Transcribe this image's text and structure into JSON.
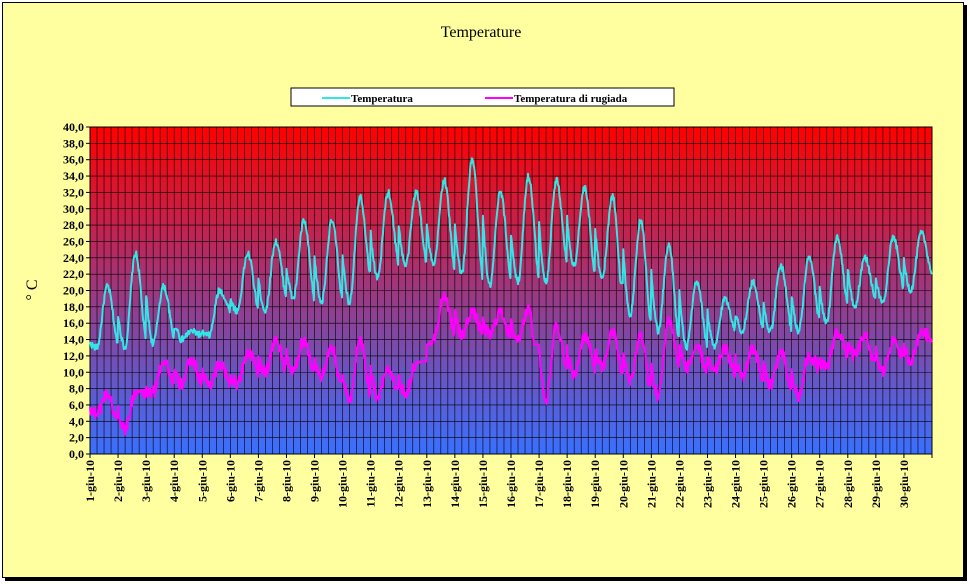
{
  "chart_data": {
    "type": "line",
    "title": "Temperature",
    "ylabel": "° C",
    "xlabel": "",
    "ylim": [
      0,
      40
    ],
    "ytick_step": 2,
    "ytick_labels": [
      "0,0",
      "2,0",
      "4,0",
      "6,0",
      "8,0",
      "10,0",
      "12,0",
      "14,0",
      "16,0",
      "18,0",
      "20,0",
      "22,0",
      "24,0",
      "26,0",
      "28,0",
      "30,0",
      "32,0",
      "34,0",
      "36,0",
      "38,0",
      "40,0"
    ],
    "x_categories": [
      "1-giu-10",
      "2-giu-10",
      "3-giu-10",
      "4-giu-10",
      "5-giu-10",
      "6-giu-10",
      "7-giu-10",
      "8-giu-10",
      "9-giu-10",
      "10-giu-10",
      "11-giu-10",
      "12-giu-10",
      "13-giu-10",
      "14-giu-10",
      "15-giu-10",
      "16-giu-10",
      "17-giu-10",
      "18-giu-10",
      "19-giu-10",
      "20-giu-10",
      "21-giu-10",
      "22-giu-10",
      "23-giu-10",
      "24-giu-10",
      "25-giu-10",
      "26-giu-10",
      "27-giu-10",
      "28-giu-10",
      "29-giu-10",
      "30-giu-10"
    ],
    "grid": true,
    "legend_position": "top-center",
    "background_gradient": [
      "#ff0000",
      "#3a70ff"
    ],
    "series": [
      {
        "name": "Temperatura",
        "color": "#33e6e6",
        "daily_min": [
          13.0,
          13.0,
          13.5,
          14.0,
          14.5,
          17.5,
          17.5,
          19.0,
          18.5,
          18.5,
          21.5,
          23.0,
          23.0,
          22.0,
          20.5,
          21.0,
          21.0,
          23.0,
          21.5,
          17.0,
          15.0,
          13.0,
          13.0,
          15.0,
          15.0,
          15.0,
          16.0,
          18.0,
          18.5,
          20.0
        ],
        "daily_max": [
          20.5,
          24.5,
          20.5,
          15.0,
          20.0,
          24.5,
          26.0,
          28.5,
          28.5,
          31.5,
          32.0,
          32.0,
          33.5,
          36.0,
          32.0,
          34.0,
          33.5,
          32.5,
          31.5,
          28.5,
          25.5,
          21.0,
          19.0,
          21.0,
          23.0,
          24.0,
          26.5,
          24.0,
          26.5,
          27.0
        ],
        "end_value": 22.0
      },
      {
        "name": "Temperatura di rugiada",
        "color": "#ff00ff",
        "daily_min": [
          5.0,
          3.0,
          7.5,
          8.5,
          8.5,
          8.5,
          10.0,
          10.0,
          9.5,
          6.5,
          7.0,
          7.5,
          14.0,
          14.5,
          14.5,
          14.0,
          6.5,
          9.5,
          10.5,
          9.0,
          7.0,
          10.5,
          10.0,
          9.5,
          8.5,
          7.0,
          10.5,
          12.0,
          10.0,
          11.5
        ],
        "daily_max": [
          7.5,
          7.5,
          11.5,
          11.5,
          11.0,
          12.5,
          14.0,
          14.0,
          13.0,
          14.0,
          10.5,
          11.0,
          19.5,
          17.5,
          17.5,
          18.0,
          16.0,
          14.5,
          15.0,
          14.5,
          16.5,
          13.0,
          13.0,
          13.0,
          12.5,
          12.0,
          15.0,
          14.5,
          14.0,
          15.0
        ],
        "end_value": 14.0
      }
    ]
  }
}
